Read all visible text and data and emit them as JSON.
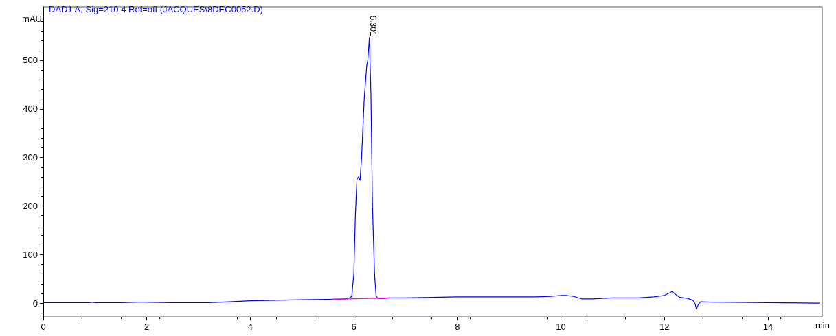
{
  "chart_data": {
    "type": "line",
    "title": "DAD1 A, Sig=210,4 Ref=off (JACQUES\\8DEC0052.D)",
    "xlabel": "min",
    "ylabel": "mAU",
    "series": [
      {
        "color": "#0000ff",
        "x": [
          0,
          0.9,
          0.95,
          1.0,
          1.5,
          1.85,
          1.9,
          2.5,
          3.2,
          3.6,
          4.0,
          4.5,
          5.0,
          5.5,
          5.8,
          5.9,
          5.96,
          6.0,
          6.03,
          6.06,
          6.09,
          6.12,
          6.15,
          6.2,
          6.25,
          6.27,
          6.301,
          6.33,
          6.36,
          6.4,
          6.43,
          6.46,
          6.55,
          6.7,
          7.0,
          7.5,
          8.0,
          8.5,
          9.0,
          9.5,
          9.8,
          10.0,
          10.1,
          10.25,
          10.4,
          10.6,
          11.0,
          11.5,
          11.8,
          12.0,
          12.1,
          12.15,
          12.22,
          12.3,
          12.45,
          12.55,
          12.59,
          12.62,
          12.66,
          12.7,
          13.0,
          14.0,
          15.0
        ],
        "values": [
          1,
          1,
          2,
          1,
          1,
          2,
          2,
          1,
          1,
          3,
          5,
          6,
          7,
          8,
          9,
          10,
          14,
          60,
          180,
          255,
          260,
          253,
          300,
          420,
          490,
          500,
          547,
          430,
          200,
          60,
          15,
          10,
          10,
          11,
          11,
          12,
          13,
          13,
          13,
          13,
          14,
          16,
          16,
          14,
          9,
          9,
          11,
          11,
          13,
          16,
          21,
          24,
          18,
          12,
          10,
          6,
          0,
          -12,
          -2,
          3,
          2,
          1,
          0
        ]
      },
      {
        "color": "#ff00ff",
        "x": [
          5.6,
          6.7
        ],
        "values": [
          8,
          11
        ]
      }
    ],
    "annotations": [
      {
        "text": "6.301",
        "x": 6.301,
        "y": 547
      }
    ],
    "xlim": [
      0,
      15.05
    ],
    "xticks": [
      0,
      2,
      4,
      6,
      8,
      10,
      12,
      14
    ],
    "ylim": [
      -28,
      610
    ],
    "yticks": [
      0,
      100,
      200,
      300,
      400,
      500
    ],
    "grid": false,
    "marker": "none",
    "line_style": "solid"
  }
}
